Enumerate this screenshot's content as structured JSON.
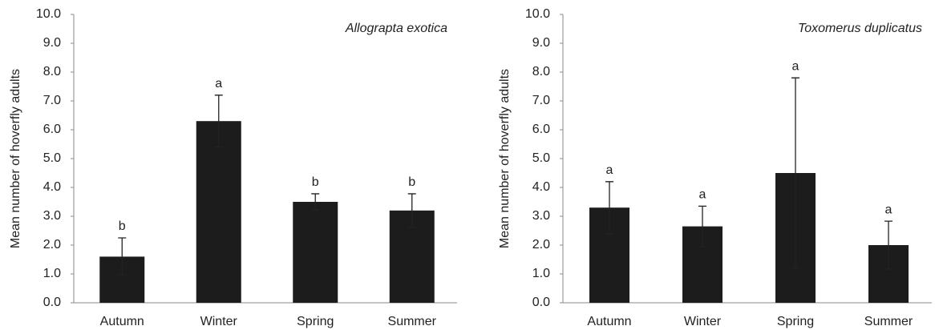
{
  "chart_data": [
    {
      "type": "bar",
      "title": "Allograpta exotica",
      "y_label": "Mean number of hoverfly adults",
      "categories": [
        "Autumn",
        "Winter",
        "Spring",
        "Summer"
      ],
      "values": [
        1.6,
        6.3,
        3.5,
        3.2
      ],
      "errors": [
        0.65,
        0.9,
        0.28,
        0.58
      ],
      "annotations": [
        "b",
        "a",
        "b",
        "b"
      ],
      "color": "#1c1c1c",
      "ylim": [
        0,
        10
      ],
      "yticks": [
        {
          "value": 0,
          "label": "0.0"
        },
        {
          "value": 1,
          "label": "1.0"
        },
        {
          "value": 2,
          "label": "2.0"
        },
        {
          "value": 3,
          "label": "3.0"
        },
        {
          "value": 4,
          "label": "4.0"
        },
        {
          "value": 5,
          "label": "5.0"
        },
        {
          "value": 6,
          "label": "6.0"
        },
        {
          "value": 7,
          "label": "7.0"
        },
        {
          "value": 8,
          "label": "8.0"
        },
        {
          "value": 9,
          "label": "9.0"
        },
        {
          "value": 10,
          "label": "10.0"
        }
      ],
      "grid": false
    },
    {
      "type": "bar",
      "title": "Toxomerus duplicatus",
      "y_label": "Mean number of hoverfly adults",
      "categories": [
        "Autumn",
        "Winter",
        "Spring",
        "Summer"
      ],
      "values": [
        3.3,
        2.65,
        4.5,
        2.0
      ],
      "errors": [
        0.9,
        0.7,
        3.3,
        0.83
      ],
      "annotations": [
        "a",
        "a",
        "a",
        "a"
      ],
      "color": "#1c1c1c",
      "ylim": [
        0,
        10
      ],
      "yticks": [
        {
          "value": 0,
          "label": "0.0"
        },
        {
          "value": 1,
          "label": "1.0"
        },
        {
          "value": 2,
          "label": "2.0"
        },
        {
          "value": 3,
          "label": "3.0"
        },
        {
          "value": 4,
          "label": "4.0"
        },
        {
          "value": 5,
          "label": "5.0"
        },
        {
          "value": 6,
          "label": "6.0"
        },
        {
          "value": 7,
          "label": "7.0"
        },
        {
          "value": 8,
          "label": "8.0"
        },
        {
          "value": 9,
          "label": "9.0"
        },
        {
          "value": 10,
          "label": "10.0"
        }
      ],
      "grid": false
    }
  ]
}
